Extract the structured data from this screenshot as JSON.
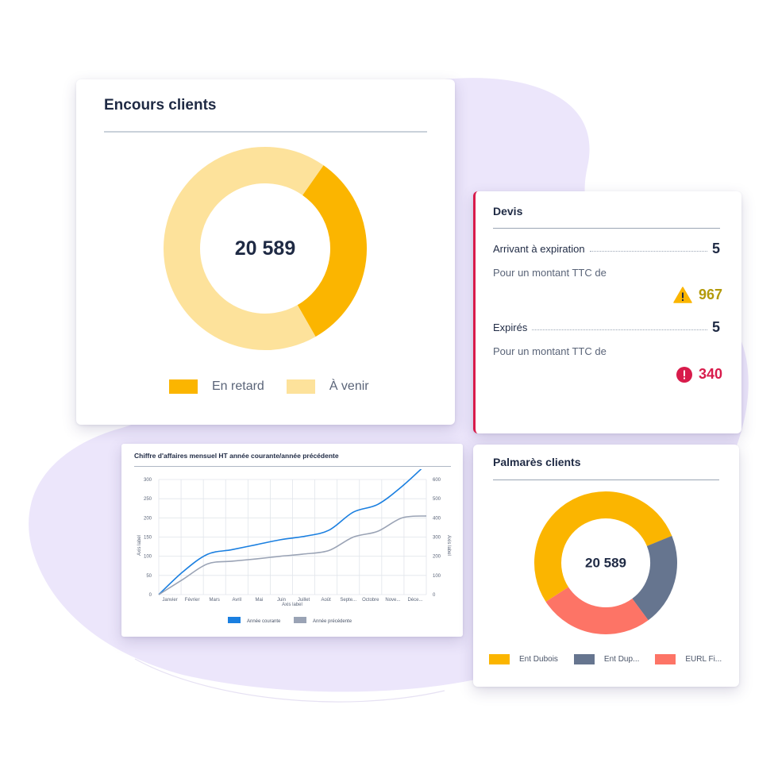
{
  "colors": {
    "en_retard": "#fbb500",
    "a_venir": "#fde29b",
    "ent_dubois": "#fbb500",
    "ent_dup": "#66758f",
    "eurl_fi": "#fd7466",
    "courante": "#1a7fe0",
    "precedente": "#9aa3b5",
    "alert_red": "#d81b4b",
    "warn_olive": "#b39a0a"
  },
  "encours": {
    "title": "Encours clients",
    "total": "20 589",
    "legend": [
      {
        "label": "En retard",
        "color": "#fbb500"
      },
      {
        "label": "À venir",
        "color": "#fde29b"
      }
    ],
    "chart_data": {
      "type": "pie",
      "categories": [
        "En retard",
        "À venir"
      ],
      "values": [
        32,
        68
      ]
    }
  },
  "devis": {
    "title": "Devis",
    "expiring": {
      "label": "Arrivant à expiration",
      "count": "5",
      "subtitle": "Pour un montant TTC  de",
      "amount": "967",
      "icon": "warning-icon"
    },
    "expired": {
      "label": "Expirés",
      "count": "5",
      "subtitle": "Pour un montant TTC  de",
      "amount": "340",
      "icon": "error-icon"
    }
  },
  "ca_chart": {
    "title": "Chiffre d'affaires mensuel HT année courante/année précédente",
    "chart_data": {
      "type": "line",
      "categories": [
        "Janvier",
        "Février",
        "Mars",
        "Avril",
        "Mai",
        "Juin",
        "Juillet",
        "Août",
        "Septe...",
        "Octobre",
        "Nove...",
        "Déce..."
      ],
      "xlabel": "Axis label",
      "ylabel_left": "Axis label",
      "ylabel_right": "Axis label",
      "ylim_left": [
        0,
        300
      ],
      "ylim_right": [
        0,
        600
      ],
      "yticks_left": [
        "300",
        "250",
        "200",
        "150",
        "100",
        "50",
        "0"
      ],
      "yticks_right": [
        "600",
        "500",
        "400",
        "300",
        "200",
        "100",
        "0"
      ],
      "series": [
        {
          "name": "Année courante",
          "axis": "left",
          "values": [
            0,
            60,
            105,
            117,
            130,
            143,
            152,
            168,
            215,
            235,
            282,
            340
          ]
        },
        {
          "name": "Année précédente",
          "axis": "left",
          "values": [
            0,
            40,
            80,
            87,
            93,
            100,
            106,
            115,
            150,
            165,
            200,
            205
          ]
        }
      ],
      "legend": [
        "Année courante",
        "Année précédente"
      ]
    }
  },
  "palmares": {
    "title": "Palmarès clients",
    "total": "20 589",
    "legend": [
      {
        "label": "Ent Dubois",
        "color": "#fbb500"
      },
      {
        "label": "Ent Dup...",
        "color": "#66758f"
      },
      {
        "label": "EURL Fi...",
        "color": "#fd7466"
      }
    ],
    "chart_data": {
      "type": "pie",
      "categories": [
        "Ent Dubois",
        "Ent Dup...",
        "EURL Fi..."
      ],
      "values": [
        53,
        21,
        26
      ]
    }
  }
}
